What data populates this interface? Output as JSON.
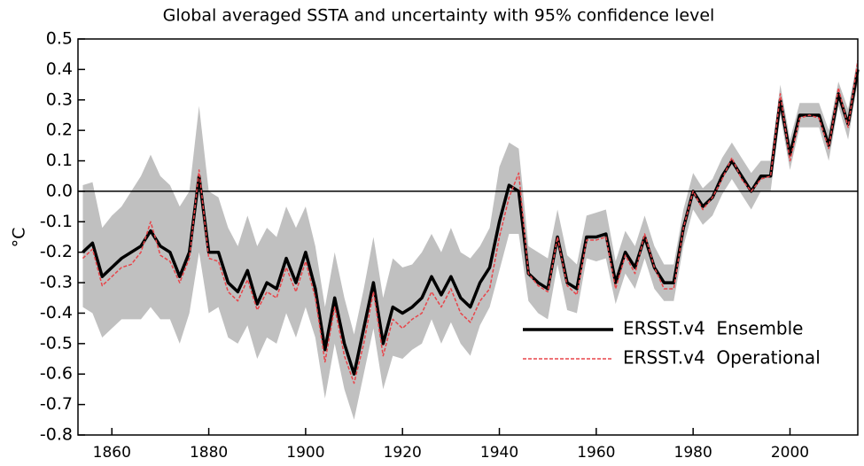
{
  "chart_data": {
    "type": "line",
    "title": "Global averaged SSTA and uncertainty with 95% confidence level",
    "y_label": "°C",
    "x": [
      1854,
      1856,
      1858,
      1860,
      1862,
      1864,
      1866,
      1868,
      1870,
      1872,
      1874,
      1876,
      1878,
      1880,
      1882,
      1884,
      1886,
      1888,
      1890,
      1892,
      1894,
      1896,
      1898,
      1900,
      1902,
      1904,
      1906,
      1908,
      1910,
      1912,
      1914,
      1916,
      1918,
      1920,
      1922,
      1924,
      1926,
      1928,
      1930,
      1932,
      1934,
      1936,
      1938,
      1940,
      1942,
      1944,
      1946,
      1948,
      1950,
      1952,
      1954,
      1956,
      1958,
      1960,
      1962,
      1964,
      1966,
      1968,
      1970,
      1972,
      1974,
      1976,
      1978,
      1980,
      1982,
      1984,
      1986,
      1988,
      1990,
      1992,
      1994,
      1996,
      1998,
      2000,
      2002,
      2004,
      2006,
      2008,
      2010,
      2012,
      2014
    ],
    "band": {
      "color": "#c0c0c0",
      "upper": [
        0.02,
        0.03,
        -0.12,
        -0.08,
        -0.05,
        0.0,
        0.05,
        0.12,
        0.05,
        0.02,
        -0.05,
        0.0,
        0.28,
        0.0,
        -0.02,
        -0.12,
        -0.18,
        -0.08,
        -0.18,
        -0.12,
        -0.15,
        -0.05,
        -0.12,
        -0.05,
        -0.18,
        -0.38,
        -0.2,
        -0.35,
        -0.47,
        -0.32,
        -0.15,
        -0.35,
        -0.22,
        -0.25,
        -0.24,
        -0.2,
        -0.14,
        -0.2,
        -0.12,
        -0.2,
        -0.22,
        -0.18,
        -0.12,
        0.08,
        0.16,
        0.14,
        -0.18,
        -0.2,
        -0.22,
        -0.06,
        -0.21,
        -0.24,
        -0.08,
        -0.07,
        -0.06,
        -0.23,
        -0.13,
        -0.18,
        -0.08,
        -0.18,
        -0.24,
        -0.24,
        -0.06,
        0.06,
        0.01,
        0.04,
        0.11,
        0.16,
        0.11,
        0.06,
        0.1,
        0.1,
        0.35,
        0.17,
        0.29,
        0.29,
        0.29,
        0.2,
        0.36,
        0.27,
        0.44
      ],
      "lower": [
        -0.38,
        -0.4,
        -0.48,
        -0.45,
        -0.42,
        -0.42,
        -0.42,
        -0.38,
        -0.42,
        -0.42,
        -0.5,
        -0.4,
        -0.2,
        -0.4,
        -0.38,
        -0.48,
        -0.5,
        -0.44,
        -0.55,
        -0.48,
        -0.5,
        -0.4,
        -0.48,
        -0.38,
        -0.48,
        -0.68,
        -0.5,
        -0.65,
        -0.75,
        -0.6,
        -0.45,
        -0.65,
        -0.54,
        -0.55,
        -0.52,
        -0.5,
        -0.42,
        -0.5,
        -0.43,
        -0.5,
        -0.54,
        -0.44,
        -0.38,
        -0.26,
        -0.14,
        -0.14,
        -0.36,
        -0.4,
        -0.42,
        -0.24,
        -0.39,
        -0.4,
        -0.22,
        -0.23,
        -0.22,
        -0.37,
        -0.27,
        -0.32,
        -0.22,
        -0.32,
        -0.36,
        -0.36,
        -0.18,
        -0.06,
        -0.11,
        -0.08,
        -0.01,
        0.04,
        -0.01,
        -0.06,
        0.0,
        0.0,
        0.25,
        0.07,
        0.21,
        0.21,
        0.21,
        0.1,
        0.28,
        0.17,
        0.36
      ]
    },
    "series": [
      {
        "name": "ERSST.v4  Ensemble",
        "color": "#000000",
        "dashed": false,
        "values": [
          -0.2,
          -0.17,
          -0.28,
          -0.25,
          -0.22,
          -0.2,
          -0.18,
          -0.13,
          -0.18,
          -0.2,
          -0.28,
          -0.2,
          0.05,
          -0.2,
          -0.2,
          -0.3,
          -0.33,
          -0.26,
          -0.37,
          -0.3,
          -0.32,
          -0.22,
          -0.3,
          -0.2,
          -0.32,
          -0.52,
          -0.35,
          -0.5,
          -0.6,
          -0.45,
          -0.3,
          -0.5,
          -0.38,
          -0.4,
          -0.38,
          -0.35,
          -0.28,
          -0.34,
          -0.28,
          -0.35,
          -0.38,
          -0.3,
          -0.25,
          -0.1,
          0.02,
          0.0,
          -0.27,
          -0.3,
          -0.32,
          -0.15,
          -0.3,
          -0.32,
          -0.15,
          -0.15,
          -0.14,
          -0.3,
          -0.2,
          -0.25,
          -0.15,
          -0.25,
          -0.3,
          -0.3,
          -0.12,
          0.0,
          -0.05,
          -0.02,
          0.05,
          0.1,
          0.05,
          0.0,
          0.05,
          0.05,
          0.3,
          0.12,
          0.25,
          0.25,
          0.25,
          0.15,
          0.32,
          0.22,
          0.4
        ]
      },
      {
        "name": "ERSST.v4  Operational",
        "color": "#e8454a",
        "dashed": true,
        "values": [
          -0.22,
          -0.19,
          -0.31,
          -0.28,
          -0.25,
          -0.24,
          -0.2,
          -0.1,
          -0.21,
          -0.23,
          -0.3,
          -0.22,
          0.07,
          -0.22,
          -0.23,
          -0.33,
          -0.36,
          -0.29,
          -0.39,
          -0.33,
          -0.35,
          -0.25,
          -0.33,
          -0.23,
          -0.35,
          -0.56,
          -0.38,
          -0.54,
          -0.63,
          -0.5,
          -0.33,
          -0.54,
          -0.42,
          -0.45,
          -0.42,
          -0.4,
          -0.33,
          -0.38,
          -0.32,
          -0.4,
          -0.43,
          -0.36,
          -0.32,
          -0.15,
          -0.02,
          0.06,
          -0.27,
          -0.31,
          -0.33,
          -0.15,
          -0.31,
          -0.34,
          -0.16,
          -0.16,
          -0.15,
          -0.32,
          -0.21,
          -0.27,
          -0.14,
          -0.25,
          -0.32,
          -0.32,
          -0.12,
          0.0,
          -0.06,
          -0.02,
          0.04,
          0.11,
          0.04,
          0.0,
          0.04,
          0.05,
          0.32,
          0.1,
          0.24,
          0.25,
          0.24,
          0.14,
          0.34,
          0.21,
          0.43
        ]
      }
    ],
    "xlim": [
      1853,
      2014
    ],
    "xticks": [
      1860,
      1880,
      1900,
      1920,
      1940,
      1960,
      1980,
      2000
    ],
    "ylim": [
      -0.8,
      0.5
    ],
    "yticks": [
      -0.8,
      -0.7,
      -0.6,
      -0.5,
      -0.4,
      -0.3,
      -0.2,
      -0.1,
      {
        "value": 0,
        "label": "0.0"
      },
      0.1,
      0.2,
      0.3,
      0.4,
      0.5
    ],
    "zero_line": true,
    "legend": "lower-right"
  }
}
